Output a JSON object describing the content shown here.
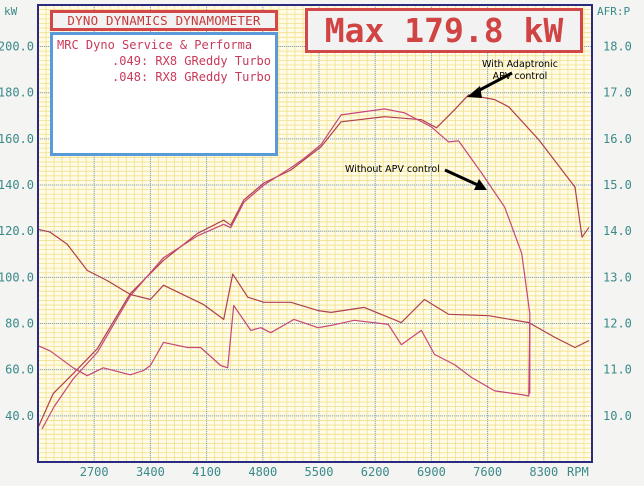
{
  "chart_data": {
    "type": "line",
    "header": "DYNO DYNAMICS DYNAMOMETER",
    "info_title": "MRC Dyno Service & Performa",
    "max_label": "Max 179.8 kW",
    "xlabel": "RPM",
    "ylabel_left": "kW",
    "ylabel_right": "AFR:P",
    "xlim": [
      2000,
      8900
    ],
    "ylim_left": [
      20,
      218
    ],
    "ylim_right": [
      9.0,
      18.9
    ],
    "xticks": [
      2700,
      3400,
      4100,
      4800,
      5500,
      6200,
      6900,
      7600,
      8300
    ],
    "yticks_left": [
      "40.0",
      "60.0",
      "80.0",
      "100.0",
      "120.0",
      "140.0",
      "160.0",
      "180.0",
      "200.0"
    ],
    "yticks_right": [
      "10.0",
      "11.0",
      "12.0",
      "13.0",
      "14.0",
      "15.0",
      "16.0",
      "17.0",
      "18.0"
    ],
    "grid": true,
    "annotations": [
      {
        "text": "With Adaptronic APV control",
        "lines": [
          "With Adaptronic",
          "APV control"
        ],
        "points_to": [
          7363,
          179.1
        ]
      },
      {
        "text": "Without APV control",
        "lines": [
          "Without APV control"
        ],
        "points_to": [
          7600,
          148
        ]
      }
    ],
    "series": [
      {
        "name": ".049: RX8 GReddy Turbo",
        "quantity": "power",
        "axis": "left",
        "color": "#b0404e",
        "x": [
          2000,
          2188,
          2438,
          2738,
          3150,
          3563,
          3988,
          4313,
          4400,
          4563,
          4813,
          5150,
          5313,
          5525,
          5775,
          6313,
          6775,
          6963,
          7188,
          7363,
          7688,
          7863,
          8238,
          8688,
          8775,
          8863
        ],
        "y": [
          34.8,
          49.6,
          58.3,
          69.1,
          93.0,
          107.4,
          119.1,
          124.8,
          122.6,
          133.5,
          140.9,
          146.5,
          150.9,
          156.5,
          167.4,
          169.6,
          168.3,
          164.8,
          172.6,
          179.1,
          177.0,
          173.9,
          159.6,
          139.1,
          117.4,
          121.7
        ]
      },
      {
        "name": ".048: RX8 GReddy Turbo",
        "quantity": "power",
        "axis": "left",
        "color": "#c4487e",
        "x": [
          2050,
          2200,
          2438,
          2738,
          3150,
          3563,
          3988,
          4313,
          4400,
          4563,
          4813,
          5150,
          5313,
          5525,
          5775,
          6313,
          6563,
          6900,
          7113,
          7238,
          7525,
          7813,
          8025,
          8125,
          8125
        ],
        "y": [
          34.3,
          44.0,
          56.0,
          67.5,
          92.0,
          108.5,
          118.0,
          123.0,
          121.5,
          132.5,
          140.0,
          147.5,
          151.5,
          157.5,
          170.4,
          173.0,
          171.3,
          165.2,
          158.7,
          159.1,
          145.2,
          130.4,
          110.4,
          84.3,
          49.6
        ]
      },
      {
        "name": ".049: RX8 GReddy Turbo",
        "quantity": "afr",
        "axis": "right",
        "color": "#b0404e",
        "x": [
          2000,
          2150,
          2363,
          2613,
          2863,
          3150,
          3400,
          3563,
          4063,
          4313,
          4425,
          4613,
          4813,
          5150,
          5488,
          5650,
          6063,
          6525,
          6813,
          7113,
          7613,
          8113,
          8438,
          8688,
          8863
        ],
        "y": [
          14.04,
          13.98,
          13.72,
          13.15,
          12.93,
          12.63,
          12.52,
          12.83,
          12.41,
          12.09,
          13.07,
          12.57,
          12.46,
          12.46,
          12.28,
          12.24,
          12.35,
          12.02,
          12.52,
          12.2,
          12.17,
          12.02,
          11.7,
          11.48,
          11.63
        ]
      },
      {
        "name": ".048: RX8 GReddy Turbo",
        "quantity": "afr",
        "axis": "right",
        "color": "#c4487e",
        "x": [
          2000,
          2150,
          2438,
          2613,
          2813,
          3150,
          3313,
          3400,
          3563,
          3863,
          4025,
          4275,
          4363,
          4438,
          4650,
          4775,
          4900,
          5188,
          5488,
          5650,
          5938,
          6363,
          6525,
          6775,
          6938,
          7188,
          7400,
          7688,
          8025,
          8113,
          8125
        ],
        "y": [
          11.52,
          11.41,
          11.04,
          10.87,
          11.04,
          10.89,
          10.98,
          11.09,
          11.59,
          11.48,
          11.48,
          11.09,
          11.04,
          12.39,
          11.85,
          11.91,
          11.8,
          12.09,
          11.91,
          11.96,
          12.07,
          11.98,
          11.54,
          11.85,
          11.33,
          11.11,
          10.83,
          10.54,
          10.46,
          10.43,
          12.07
        ]
      }
    ]
  }
}
